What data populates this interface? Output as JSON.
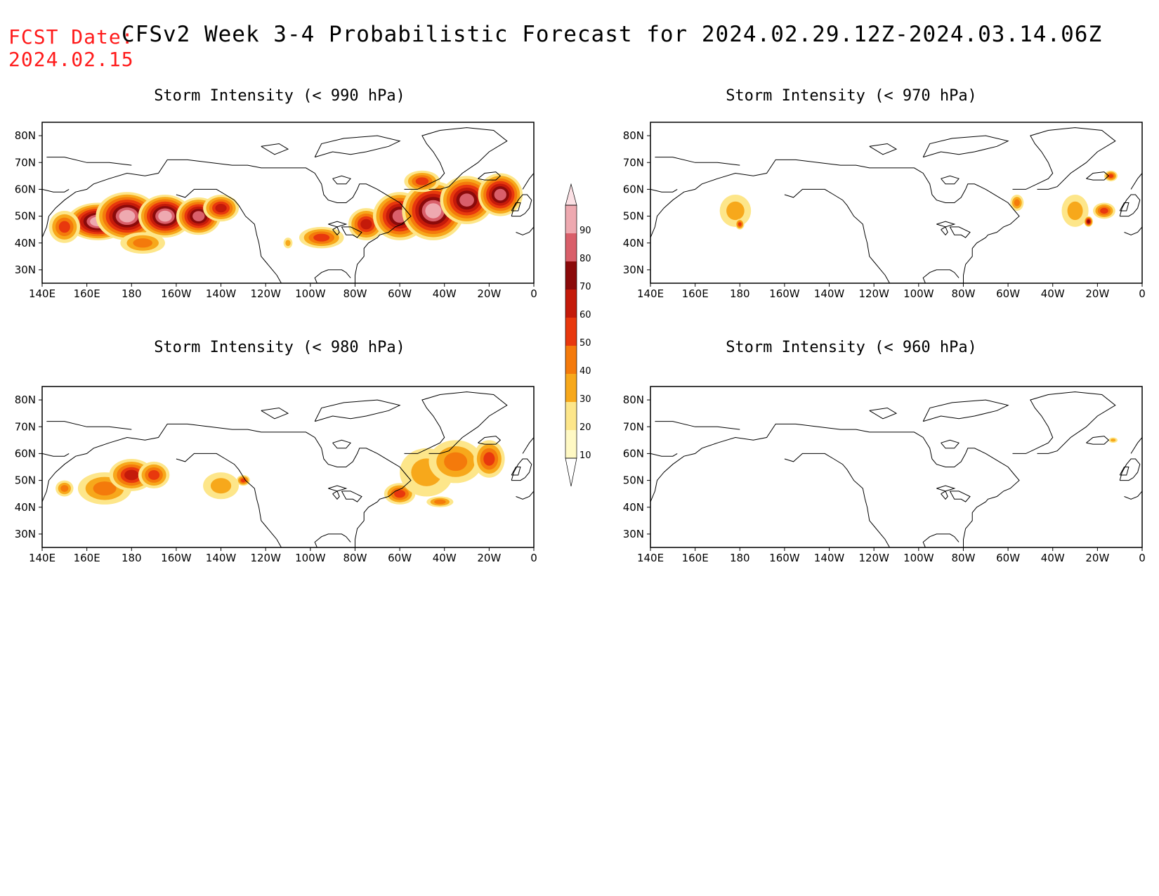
{
  "header": {
    "fcst_label": "FCST Date:",
    "fcst_date": "2024.02.15",
    "title": "CFSv2 Week 3-4 Probabilistic Forecast for 2024.02.29.12Z-2024.03.14.06Z"
  },
  "axes": {
    "lon_labels": [
      "140E",
      "160E",
      "180",
      "160W",
      "140W",
      "120W",
      "100W",
      "80W",
      "60W",
      "40W",
      "20W",
      "0"
    ],
    "lat_labels": [
      "80N",
      "70N",
      "60N",
      "50N",
      "40N",
      "30N"
    ],
    "lon_range_deg_east": [
      140,
      360
    ],
    "lat_range": [
      25,
      85
    ]
  },
  "colorbar": {
    "levels": [
      10,
      20,
      30,
      40,
      50,
      60,
      70,
      80,
      90
    ],
    "colors": [
      "#fff9c4",
      "#fde68a",
      "#f7a81b",
      "#f47a0b",
      "#e8380d",
      "#c41a0a",
      "#8b0a0a",
      "#d95f6a",
      "#eea9b0",
      "#fbe0e4"
    ]
  },
  "panels": [
    {
      "id": "p990",
      "title": "Storm Intensity (< 990 hPa)",
      "blobs": [
        {
          "lon": 165,
          "lat": 48,
          "rlon": 14,
          "rlat": 7,
          "p": 80
        },
        {
          "lon": 178,
          "lat": 50,
          "rlon": 14,
          "rlat": 9,
          "p": 85
        },
        {
          "lon": 195,
          "lat": 50,
          "rlon": 12,
          "rlat": 8,
          "p": 80
        },
        {
          "lon": 210,
          "lat": 50,
          "rlon": 10,
          "rlat": 7,
          "p": 70
        },
        {
          "lon": 220,
          "lat": 53,
          "rlon": 8,
          "rlat": 5,
          "p": 50
        },
        {
          "lon": 150,
          "lat": 46,
          "rlon": 7,
          "rlat": 6,
          "p": 40
        },
        {
          "lon": 185,
          "lat": 40,
          "rlon": 10,
          "rlat": 4,
          "p": 35
        },
        {
          "lon": 250,
          "lat": 40,
          "rlon": 2,
          "rlat": 2,
          "p": 25
        },
        {
          "lon": 265,
          "lat": 42,
          "rlon": 10,
          "rlat": 4,
          "p": 45
        },
        {
          "lon": 285,
          "lat": 47,
          "rlon": 8,
          "rlat": 6,
          "p": 55
        },
        {
          "lon": 300,
          "lat": 50,
          "rlon": 12,
          "rlat": 9,
          "p": 75
        },
        {
          "lon": 315,
          "lat": 52,
          "rlon": 14,
          "rlat": 11,
          "p": 80
        },
        {
          "lon": 330,
          "lat": 56,
          "rlon": 12,
          "rlat": 9,
          "p": 70
        },
        {
          "lon": 345,
          "lat": 58,
          "rlon": 10,
          "rlat": 8,
          "p": 75
        },
        {
          "lon": 310,
          "lat": 63,
          "rlon": 8,
          "rlat": 4,
          "p": 45
        }
      ]
    },
    {
      "id": "p970",
      "title": "Storm Intensity (< 970 hPa)",
      "blobs": [
        {
          "lon": 178,
          "lat": 52,
          "rlon": 7,
          "rlat": 6,
          "p": 20
        },
        {
          "lon": 180,
          "lat": 47,
          "rlon": 2,
          "rlat": 2,
          "p": 40
        },
        {
          "lon": 304,
          "lat": 55,
          "rlon": 3,
          "rlat": 3,
          "p": 30
        },
        {
          "lon": 330,
          "lat": 52,
          "rlon": 6,
          "rlat": 6,
          "p": 20
        },
        {
          "lon": 336,
          "lat": 48,
          "rlon": 2,
          "rlat": 2,
          "p": 60
        },
        {
          "lon": 343,
          "lat": 52,
          "rlon": 5,
          "rlat": 3,
          "p": 40
        },
        {
          "lon": 346,
          "lat": 65,
          "rlon": 3,
          "rlat": 2,
          "p": 40
        }
      ]
    },
    {
      "id": "p980",
      "title": "Storm Intensity (< 980 hPa)",
      "blobs": [
        {
          "lon": 168,
          "lat": 47,
          "rlon": 12,
          "rlat": 6,
          "p": 35
        },
        {
          "lon": 180,
          "lat": 52,
          "rlon": 10,
          "rlat": 6,
          "p": 55
        },
        {
          "lon": 190,
          "lat": 52,
          "rlon": 7,
          "rlat": 5,
          "p": 45
        },
        {
          "lon": 150,
          "lat": 47,
          "rlon": 4,
          "rlat": 3,
          "p": 30
        },
        {
          "lon": 220,
          "lat": 48,
          "rlon": 8,
          "rlat": 5,
          "p": 20
        },
        {
          "lon": 230,
          "lat": 50,
          "rlon": 3,
          "rlat": 2,
          "p": 40
        },
        {
          "lon": 300,
          "lat": 45,
          "rlon": 7,
          "rlat": 4,
          "p": 40
        },
        {
          "lon": 312,
          "lat": 53,
          "rlon": 12,
          "rlat": 9,
          "p": 25
        },
        {
          "lon": 325,
          "lat": 57,
          "rlon": 12,
          "rlat": 8,
          "p": 35
        },
        {
          "lon": 340,
          "lat": 58,
          "rlon": 7,
          "rlat": 7,
          "p": 45
        },
        {
          "lon": 318,
          "lat": 42,
          "rlon": 6,
          "rlat": 2,
          "p": 35
        }
      ]
    },
    {
      "id": "p960",
      "title": "Storm Intensity (< 960 hPa)",
      "blobs": [
        {
          "lon": 347,
          "lat": 65,
          "rlon": 2,
          "rlat": 1,
          "p": 20
        }
      ]
    }
  ]
}
